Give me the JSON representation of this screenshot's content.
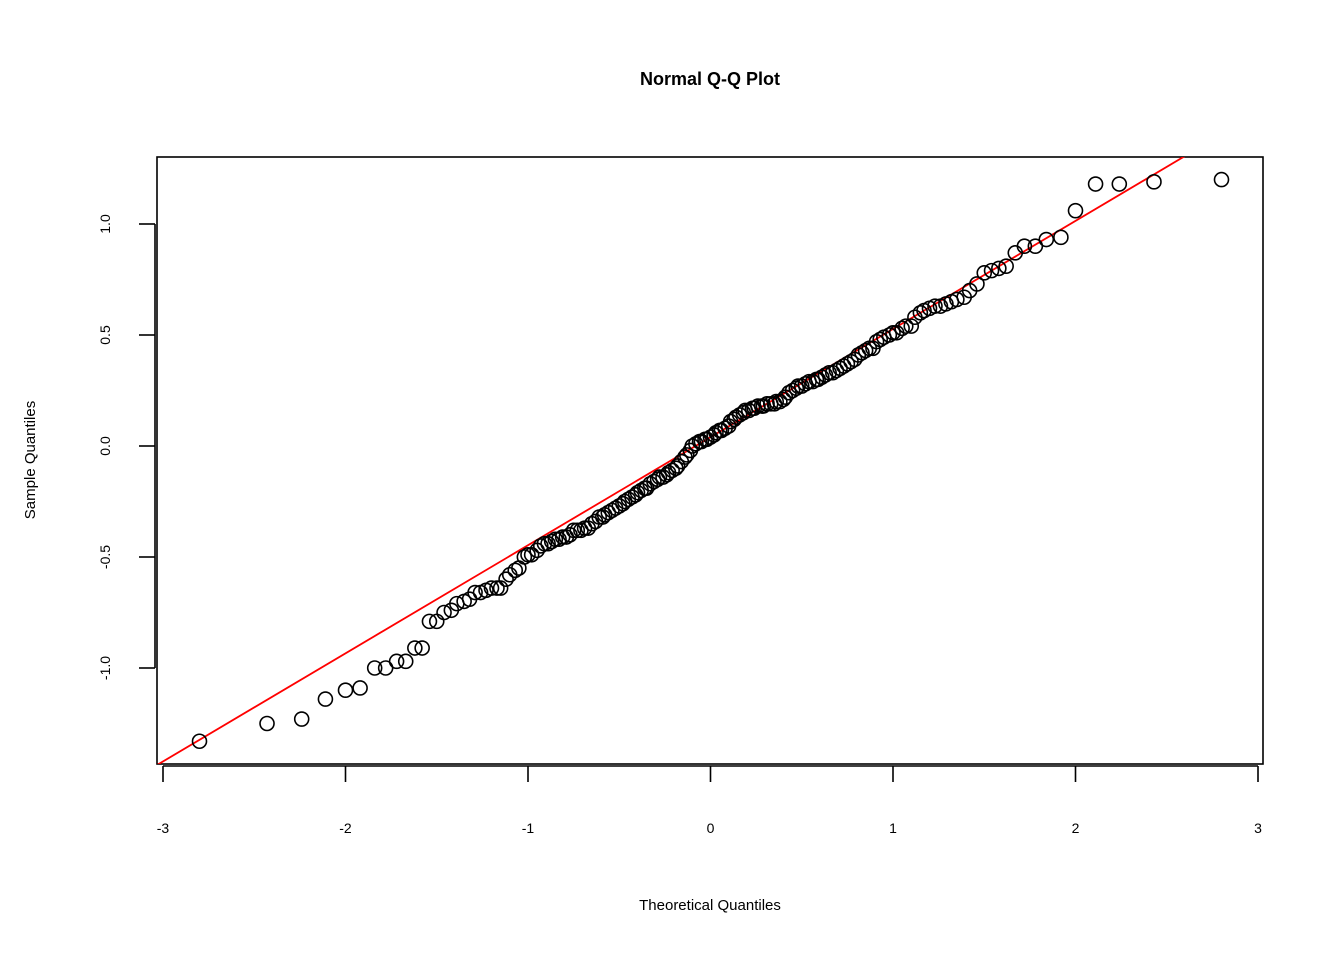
{
  "chart_data": {
    "type": "scatter",
    "title": "Normal Q-Q Plot",
    "xlabel": "Theoretical Quantiles",
    "ylabel": "Sample Quantiles",
    "xlim": [
      -3,
      3
    ],
    "ylim": [
      -1.42,
      1.3
    ],
    "x_ticks": [
      -3,
      -2,
      -1,
      0,
      1,
      2,
      3
    ],
    "x_tick_labels": [
      "-3",
      "-2",
      "-1",
      "0",
      "1",
      "2",
      "3"
    ],
    "y_ticks": [
      -1.0,
      -0.5,
      0.0,
      0.5,
      1.0
    ],
    "y_tick_labels": [
      "-1.0",
      "-0.5",
      "0.0",
      "0.5",
      "1.0"
    ],
    "reference_line": {
      "intercept": 0.04,
      "slope": 0.487,
      "color": "#ff0000"
    },
    "point_color": "#000000",
    "grid": false,
    "points": [
      [
        -2.8,
        -1.33
      ],
      [
        -2.43,
        -1.25
      ],
      [
        -2.24,
        -1.23
      ],
      [
        -2.11,
        -1.14
      ],
      [
        -2.0,
        -1.1
      ],
      [
        -1.92,
        -1.09
      ],
      [
        -1.84,
        -1.0
      ],
      [
        -1.78,
        -1.0
      ],
      [
        -1.72,
        -0.97
      ],
      [
        -1.67,
        -0.97
      ],
      [
        -1.62,
        -0.91
      ],
      [
        -1.58,
        -0.91
      ],
      [
        -1.54,
        -0.79
      ],
      [
        -1.5,
        -0.79
      ],
      [
        -1.46,
        -0.75
      ],
      [
        -1.42,
        -0.74
      ],
      [
        -1.39,
        -0.71
      ],
      [
        -1.35,
        -0.7
      ],
      [
        -1.32,
        -0.69
      ],
      [
        -1.29,
        -0.66
      ],
      [
        -1.26,
        -0.66
      ],
      [
        -1.23,
        -0.65
      ],
      [
        -1.2,
        -0.64
      ],
      [
        -1.17,
        -0.64
      ],
      [
        -1.15,
        -0.64
      ],
      [
        -1.12,
        -0.6
      ],
      [
        -1.1,
        -0.58
      ],
      [
        -1.07,
        -0.56
      ],
      [
        -1.05,
        -0.55
      ],
      [
        -1.02,
        -0.5
      ],
      [
        -1.0,
        -0.49
      ],
      [
        -0.98,
        -0.49
      ],
      [
        -0.95,
        -0.47
      ],
      [
        -0.93,
        -0.45
      ],
      [
        -0.91,
        -0.44
      ],
      [
        -0.89,
        -0.44
      ],
      [
        -0.87,
        -0.43
      ],
      [
        -0.85,
        -0.42
      ],
      [
        -0.83,
        -0.42
      ],
      [
        -0.81,
        -0.41
      ],
      [
        -0.79,
        -0.41
      ],
      [
        -0.77,
        -0.4
      ],
      [
        -0.75,
        -0.38
      ],
      [
        -0.73,
        -0.38
      ],
      [
        -0.71,
        -0.38
      ],
      [
        -0.69,
        -0.37
      ],
      [
        -0.67,
        -0.37
      ],
      [
        -0.65,
        -0.35
      ],
      [
        -0.63,
        -0.34
      ],
      [
        -0.61,
        -0.32
      ],
      [
        -0.59,
        -0.32
      ],
      [
        -0.58,
        -0.31
      ],
      [
        -0.56,
        -0.3
      ],
      [
        -0.54,
        -0.29
      ],
      [
        -0.52,
        -0.28
      ],
      [
        -0.5,
        -0.27
      ],
      [
        -0.48,
        -0.26
      ],
      [
        -0.47,
        -0.25
      ],
      [
        -0.45,
        -0.24
      ],
      [
        -0.43,
        -0.23
      ],
      [
        -0.41,
        -0.22
      ],
      [
        -0.4,
        -0.21
      ],
      [
        -0.38,
        -0.2
      ],
      [
        -0.36,
        -0.19
      ],
      [
        -0.35,
        -0.19
      ],
      [
        -0.33,
        -0.17
      ],
      [
        -0.31,
        -0.16
      ],
      [
        -0.29,
        -0.15
      ],
      [
        -0.28,
        -0.14
      ],
      [
        -0.26,
        -0.14
      ],
      [
        -0.24,
        -0.13
      ],
      [
        -0.23,
        -0.12
      ],
      [
        -0.21,
        -0.11
      ],
      [
        -0.19,
        -0.1
      ],
      [
        -0.18,
        -0.09
      ],
      [
        -0.16,
        -0.07
      ],
      [
        -0.14,
        -0.05
      ],
      [
        -0.13,
        -0.04
      ],
      [
        -0.11,
        -0.02
      ],
      [
        -0.1,
        0.0
      ],
      [
        -0.08,
        0.01
      ],
      [
        -0.06,
        0.02
      ],
      [
        -0.05,
        0.02
      ],
      [
        -0.03,
        0.03
      ],
      [
        -0.02,
        0.03
      ],
      [
        0.0,
        0.04
      ],
      [
        0.02,
        0.05
      ],
      [
        0.03,
        0.06
      ],
      [
        0.05,
        0.07
      ],
      [
        0.06,
        0.07
      ],
      [
        0.08,
        0.08
      ],
      [
        0.1,
        0.09
      ],
      [
        0.11,
        0.11
      ],
      [
        0.13,
        0.12
      ],
      [
        0.14,
        0.13
      ],
      [
        0.16,
        0.14
      ],
      [
        0.18,
        0.15
      ],
      [
        0.19,
        0.16
      ],
      [
        0.21,
        0.16
      ],
      [
        0.23,
        0.17
      ],
      [
        0.24,
        0.17
      ],
      [
        0.26,
        0.18
      ],
      [
        0.28,
        0.18
      ],
      [
        0.29,
        0.18
      ],
      [
        0.31,
        0.19
      ],
      [
        0.33,
        0.19
      ],
      [
        0.35,
        0.19
      ],
      [
        0.36,
        0.2
      ],
      [
        0.38,
        0.2
      ],
      [
        0.4,
        0.21
      ],
      [
        0.41,
        0.22
      ],
      [
        0.43,
        0.24
      ],
      [
        0.45,
        0.25
      ],
      [
        0.47,
        0.26
      ],
      [
        0.48,
        0.27
      ],
      [
        0.5,
        0.27
      ],
      [
        0.52,
        0.28
      ],
      [
        0.54,
        0.29
      ],
      [
        0.56,
        0.29
      ],
      [
        0.58,
        0.3
      ],
      [
        0.59,
        0.3
      ],
      [
        0.61,
        0.31
      ],
      [
        0.63,
        0.32
      ],
      [
        0.65,
        0.33
      ],
      [
        0.67,
        0.33
      ],
      [
        0.69,
        0.34
      ],
      [
        0.71,
        0.35
      ],
      [
        0.73,
        0.36
      ],
      [
        0.75,
        0.37
      ],
      [
        0.77,
        0.38
      ],
      [
        0.79,
        0.39
      ],
      [
        0.81,
        0.41
      ],
      [
        0.83,
        0.42
      ],
      [
        0.85,
        0.43
      ],
      [
        0.87,
        0.44
      ],
      [
        0.89,
        0.44
      ],
      [
        0.91,
        0.47
      ],
      [
        0.93,
        0.48
      ],
      [
        0.95,
        0.49
      ],
      [
        0.98,
        0.5
      ],
      [
        1.0,
        0.51
      ],
      [
        1.02,
        0.51
      ],
      [
        1.05,
        0.53
      ],
      [
        1.07,
        0.54
      ],
      [
        1.1,
        0.54
      ],
      [
        1.12,
        0.58
      ],
      [
        1.15,
        0.6
      ],
      [
        1.17,
        0.61
      ],
      [
        1.2,
        0.62
      ],
      [
        1.23,
        0.63
      ],
      [
        1.26,
        0.63
      ],
      [
        1.29,
        0.64
      ],
      [
        1.32,
        0.65
      ],
      [
        1.35,
        0.66
      ],
      [
        1.39,
        0.67
      ],
      [
        1.42,
        0.7
      ],
      [
        1.46,
        0.73
      ],
      [
        1.5,
        0.78
      ],
      [
        1.54,
        0.79
      ],
      [
        1.58,
        0.8
      ],
      [
        1.62,
        0.81
      ],
      [
        1.67,
        0.87
      ],
      [
        1.72,
        0.9
      ],
      [
        1.78,
        0.9
      ],
      [
        1.84,
        0.93
      ],
      [
        1.92,
        0.94
      ],
      [
        2.0,
        1.06
      ],
      [
        2.11,
        1.18
      ],
      [
        2.24,
        1.18
      ],
      [
        2.43,
        1.19
      ],
      [
        2.8,
        1.2
      ]
    ]
  }
}
